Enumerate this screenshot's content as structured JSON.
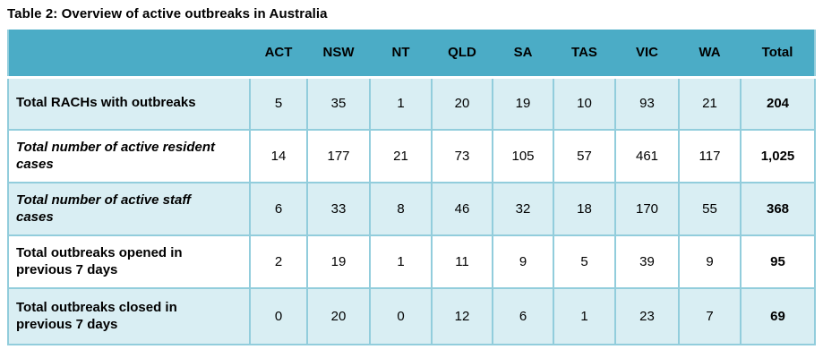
{
  "title": "Table 2: Overview of active outbreaks in Australia",
  "colors": {
    "header_bg": "#4BACC6",
    "shaded_row_bg": "#D9EEF3",
    "plain_row_bg": "#FFFFFF",
    "border": "#92CDDC",
    "text": "#000000"
  },
  "chart_data": {
    "type": "table",
    "title": "Table 2: Overview of active outbreaks in Australia",
    "columns": [
      "ACT",
      "NSW",
      "NT",
      "QLD",
      "SA",
      "TAS",
      "VIC",
      "WA",
      "Total"
    ],
    "rows": [
      {
        "label": "Total RACHs with outbreaks",
        "italic": false,
        "shaded": true,
        "values": [
          "5",
          "35",
          "1",
          "20",
          "19",
          "10",
          "93",
          "21"
        ],
        "total": "204"
      },
      {
        "label": "Total number of active resident cases",
        "italic": true,
        "shaded": false,
        "values": [
          "14",
          "177",
          "21",
          "73",
          "105",
          "57",
          "461",
          "117"
        ],
        "total": "1,025"
      },
      {
        "label": "Total number of active staff cases",
        "italic": true,
        "shaded": true,
        "values": [
          "6",
          "33",
          "8",
          "46",
          "32",
          "18",
          "170",
          "55"
        ],
        "total": "368"
      },
      {
        "label": "Total outbreaks opened in previous 7 days",
        "italic": false,
        "shaded": false,
        "values": [
          "2",
          "19",
          "1",
          "11",
          "9",
          "5",
          "39",
          "9"
        ],
        "total": "95"
      },
      {
        "label": "Total outbreaks closed in previous 7 days",
        "italic": false,
        "shaded": true,
        "values": [
          "0",
          "20",
          "0",
          "12",
          "6",
          "1",
          "23",
          "7"
        ],
        "total": "69"
      }
    ]
  }
}
